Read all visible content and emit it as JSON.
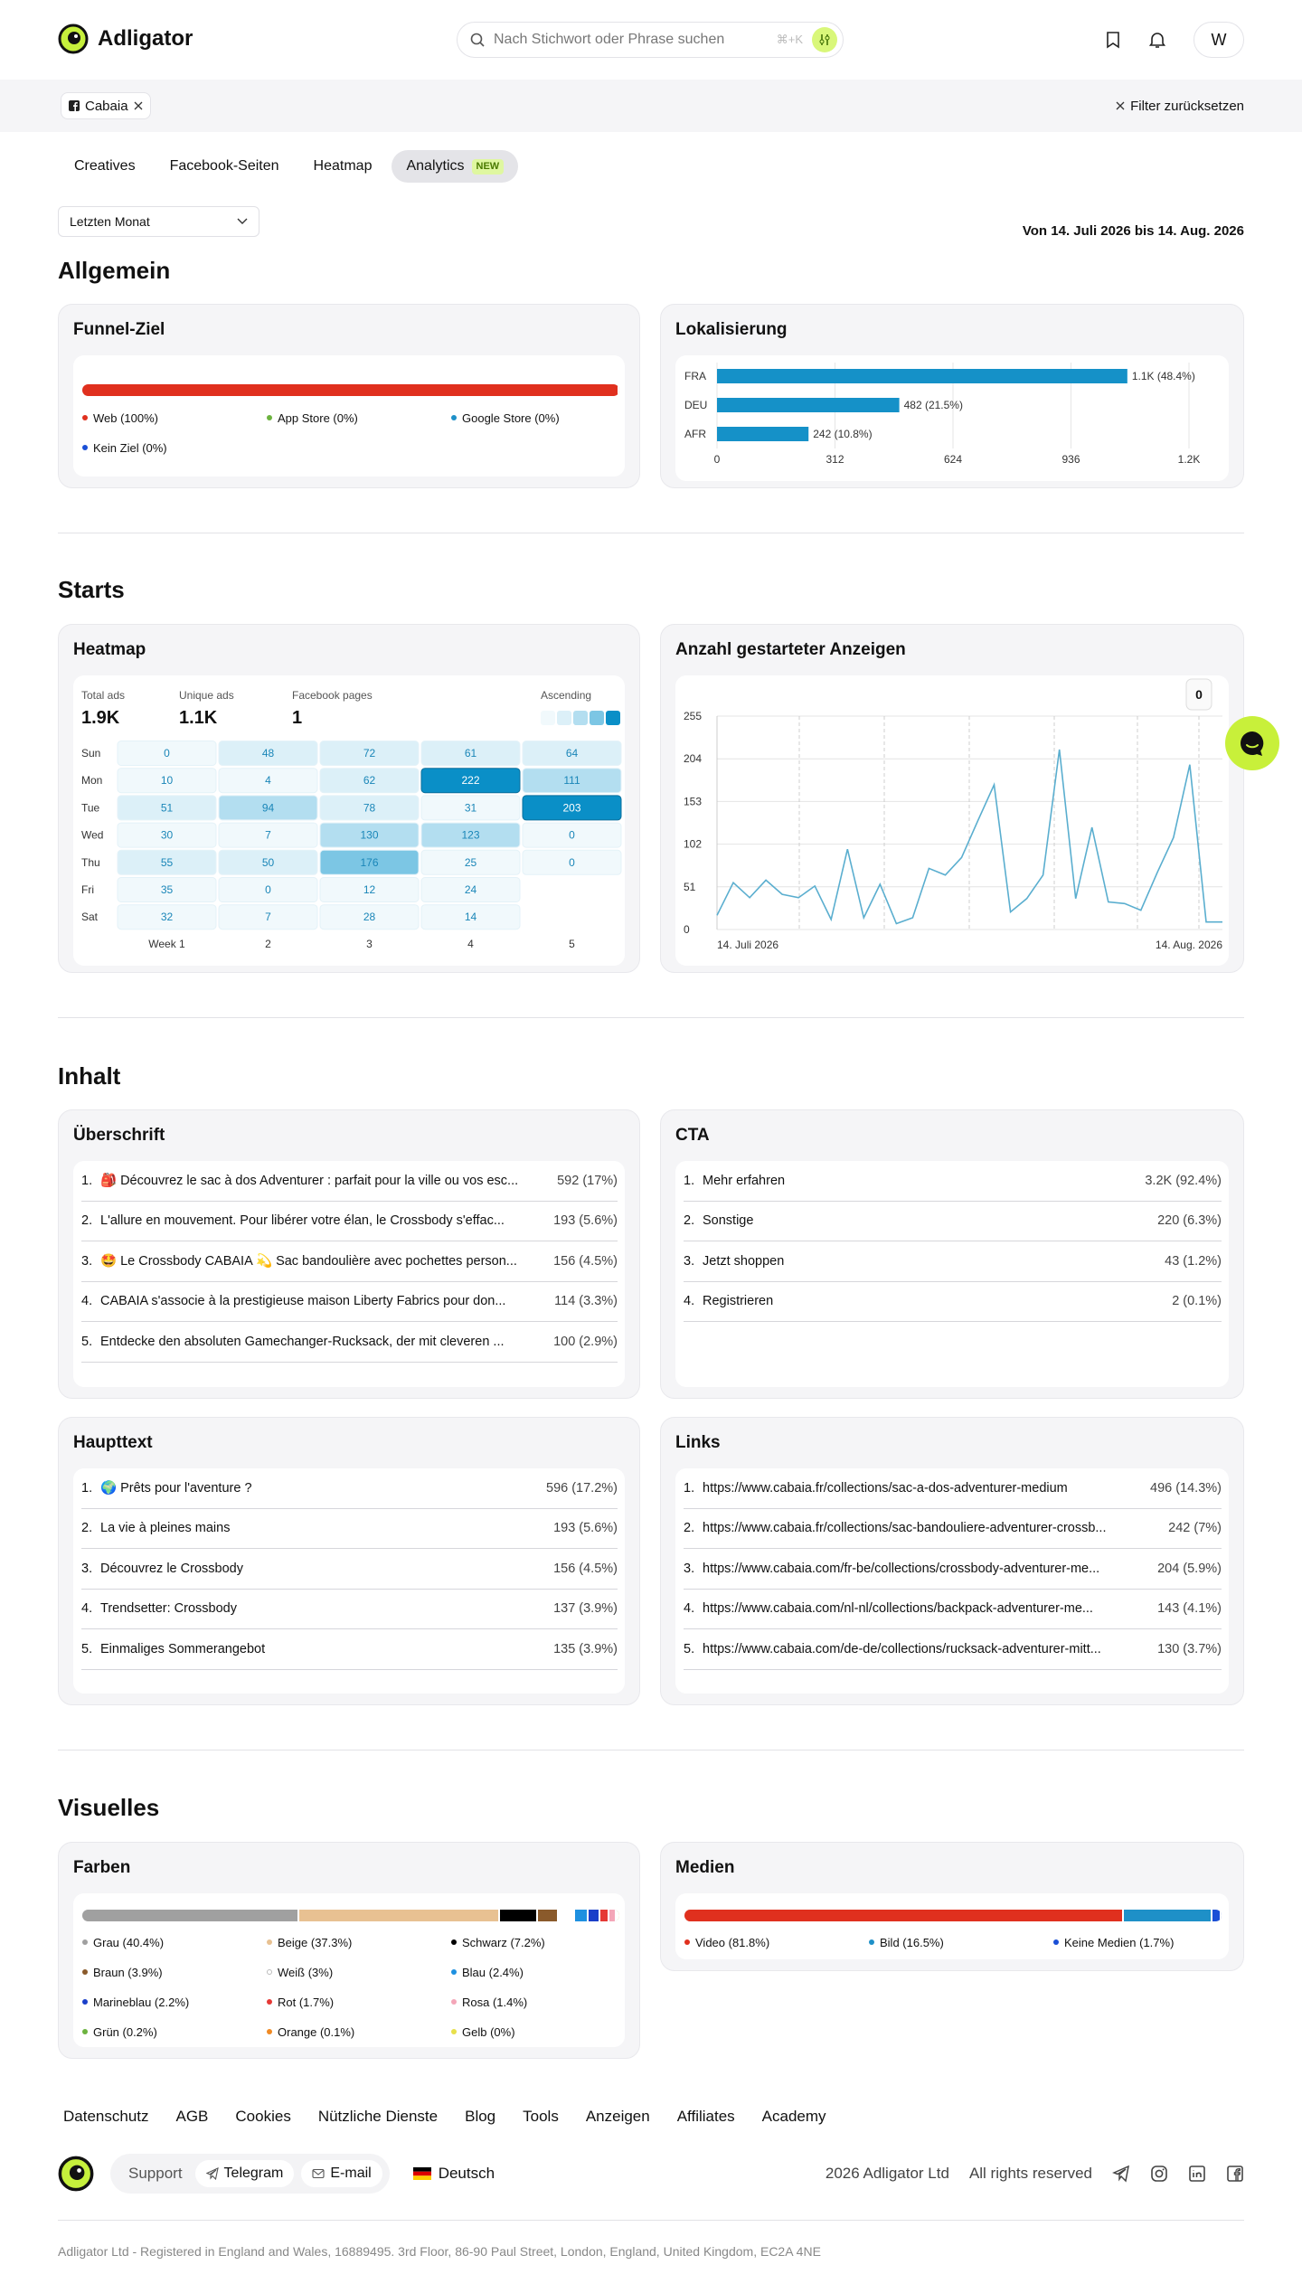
{
  "header": {
    "logo": "Adligator",
    "search_placeholder": "Nach Stichwort oder Phrase suchen",
    "search_shortcut": "⌘+K",
    "avatar": "W"
  },
  "filter_bar": {
    "chip": "Cabaia",
    "reset": "Filter zurücksetzen"
  },
  "tabs": {
    "items": [
      "Creatives",
      "Facebook-Seiten",
      "Heatmap",
      "Analytics"
    ],
    "active": 3,
    "badge": "NEW"
  },
  "period": {
    "select": "Letzten Monat",
    "range": "Von 14. Juli 2026 bis 14. Aug. 2026"
  },
  "sections": [
    "Allgemein",
    "Starts",
    "Inhalt",
    "Visuelles"
  ],
  "funnel": {
    "title": "Funnel-Ziel",
    "segments": [
      {
        "label": "Web (100%)",
        "value": 100,
        "color": "#e0301e"
      },
      {
        "label": "App Store (0%)",
        "value": 0,
        "color": "#6cb33f"
      },
      {
        "label": "Google Store (0%)",
        "value": 0,
        "color": "#1e90c8"
      },
      {
        "label": "Kein Ziel (0%)",
        "value": 0,
        "color": "#1a4fd6"
      }
    ]
  },
  "localization": {
    "title": "Lokalisierung",
    "chart_data": {
      "type": "bar",
      "orientation": "horizontal",
      "categories": [
        "FRA",
        "DEU",
        "AFR"
      ],
      "values": [
        1085,
        482,
        242
      ],
      "value_labels": [
        "1.1K (48.4%)",
        "482 (21.5%)",
        "242 (10.8%)"
      ],
      "color": "#1591c8",
      "xlim": [
        0,
        1248
      ],
      "xticks": [
        0,
        312,
        624,
        936,
        {
          "value": 1248,
          "label": "1.2K"
        }
      ],
      "grid": true
    }
  },
  "heatmap": {
    "title": "Heatmap",
    "stats": [
      {
        "label": "Total ads",
        "value": "1.9K"
      },
      {
        "label": "Unique ads",
        "value": "1.1K"
      },
      {
        "label": "Facebook pages",
        "value": "1"
      }
    ],
    "legend": "Ascending",
    "color_scale": [
      "#f1f9fc",
      "#dcf0f8",
      "#b3def0",
      "#7cc6e4",
      "#0a8fc7"
    ],
    "rows": [
      "Sun",
      "Mon",
      "Tue",
      "Wed",
      "Thu",
      "Fri",
      "Sat"
    ],
    "columns": [
      "Week 1",
      "2",
      "3",
      "4",
      "5"
    ],
    "values": [
      [
        0,
        48,
        72,
        61,
        64
      ],
      [
        10,
        4,
        62,
        222,
        111
      ],
      [
        51,
        94,
        78,
        31,
        203
      ],
      [
        30,
        7,
        130,
        123,
        0
      ],
      [
        55,
        50,
        176,
        25,
        0
      ],
      [
        35,
        0,
        12,
        24,
        null
      ],
      [
        32,
        7,
        28,
        14,
        null
      ]
    ]
  },
  "starts_chart": {
    "title": "Anzahl gestarteter Anzeigen",
    "tooltip": "0",
    "chart_data": {
      "type": "line",
      "categories": [
        "14. Juli 2026",
        null,
        null,
        null,
        null,
        null,
        null,
        null,
        null,
        null,
        null,
        null,
        null,
        null,
        null,
        null,
        null,
        null,
        null,
        null,
        null,
        null,
        null,
        null,
        null,
        null,
        null,
        null,
        null,
        null,
        null,
        "14. Aug. 2026"
      ],
      "values": [
        17,
        56,
        38,
        59,
        42,
        38,
        52,
        12,
        96,
        14,
        54,
        7,
        14,
        73,
        65,
        86,
        130,
        173,
        21,
        37,
        65,
        215,
        37,
        122,
        33,
        31,
        23,
        68,
        110,
        197,
        9,
        9
      ],
      "color": "#5aaecf",
      "ylim": [
        0,
        255
      ],
      "yticks": [
        0,
        51,
        102,
        153,
        204,
        255
      ],
      "grid": true
    }
  },
  "headlines": {
    "title": "Überschrift",
    "items": [
      {
        "rank": "1.",
        "text": "🎒 Découvrez le sac à dos Adventurer : parfait pour la ville ou vos esc...",
        "count": "592 (17%)"
      },
      {
        "rank": "2.",
        "text": "L'allure en mouvement. Pour libérer votre élan, le Crossbody s'effac...",
        "count": "193 (5.6%)"
      },
      {
        "rank": "3.",
        "text": "🤩 Le Crossbody CABAIA 💫 Sac bandoulière avec pochettes person...",
        "count": "156 (4.5%)"
      },
      {
        "rank": "4.",
        "text": "CABAIA s'associe à la prestigieuse maison Liberty Fabrics pour don...",
        "count": "114 (3.3%)"
      },
      {
        "rank": "5.",
        "text": "Entdecke den absoluten Gamechanger-Rucksack, der mit cleveren ...",
        "count": "100 (2.9%)"
      }
    ]
  },
  "cta": {
    "title": "CTA",
    "items": [
      {
        "rank": "1.",
        "text": "Mehr erfahren",
        "count": "3.2K (92.4%)"
      },
      {
        "rank": "2.",
        "text": "Sonstige",
        "count": "220 (6.3%)"
      },
      {
        "rank": "3.",
        "text": "Jetzt shoppen",
        "count": "43 (1.2%)"
      },
      {
        "rank": "4.",
        "text": "Registrieren",
        "count": "2 (0.1%)"
      }
    ]
  },
  "body_text": {
    "title": "Haupttext",
    "items": [
      {
        "rank": "1.",
        "text": "🌍 Prêts pour l'aventure ?",
        "count": "596 (17.2%)"
      },
      {
        "rank": "2.",
        "text": "La vie à pleines mains",
        "count": "193 (5.6%)"
      },
      {
        "rank": "3.",
        "text": "Découvrez le Crossbody",
        "count": "156 (4.5%)"
      },
      {
        "rank": "4.",
        "text": "Trendsetter: Crossbody",
        "count": "137 (3.9%)"
      },
      {
        "rank": "5.",
        "text": "Einmaliges Sommerangebot",
        "count": "135 (3.9%)"
      }
    ]
  },
  "links": {
    "title": "Links",
    "items": [
      {
        "rank": "1.",
        "text": "https://www.cabaia.fr/collections/sac-a-dos-adventurer-medium",
        "count": "496 (14.3%)"
      },
      {
        "rank": "2.",
        "text": "https://www.cabaia.fr/collections/sac-bandouliere-adventurer-crossb...",
        "count": "242 (7%)"
      },
      {
        "rank": "3.",
        "text": "https://www.cabaia.com/fr-be/collections/crossbody-adventurer-me...",
        "count": "204 (5.9%)"
      },
      {
        "rank": "4.",
        "text": "https://www.cabaia.com/nl-nl/collections/backpack-adventurer-me...",
        "count": "143 (4.1%)"
      },
      {
        "rank": "5.",
        "text": "https://www.cabaia.com/de-de/collections/rucksack-adventurer-mitt...",
        "count": "130 (3.7%)"
      }
    ]
  },
  "colors": {
    "title": "Farben",
    "segments": [
      {
        "label": "Grau (40.4%)",
        "value": 40.4,
        "color": "#a0a0a0"
      },
      {
        "label": "Beige (37.3%)",
        "value": 37.3,
        "color": "#e8c192"
      },
      {
        "label": "Schwarz (7.2%)",
        "value": 7.2,
        "color": "#000000"
      },
      {
        "label": "Braun (3.9%)",
        "value": 3.9,
        "color": "#8a5a2b"
      },
      {
        "label": "Weiß (3%)",
        "value": 3,
        "color": "#ffffff"
      },
      {
        "label": "Blau (2.4%)",
        "value": 2.4,
        "color": "#1e90e0"
      },
      {
        "label": "Marineblau (2.2%)",
        "value": 2.2,
        "color": "#1a3fc9"
      },
      {
        "label": "Rot (1.7%)",
        "value": 1.7,
        "color": "#e53935"
      },
      {
        "label": "Rosa (1.4%)",
        "value": 1.4,
        "color": "#f4a6b8"
      },
      {
        "label": "Grün (0.2%)",
        "value": 0.2,
        "color": "#6cb33f"
      },
      {
        "label": "Orange (0.1%)",
        "value": 0.1,
        "color": "#f08a24"
      },
      {
        "label": "Gelb (0%)",
        "value": 0,
        "color": "#e8e04a"
      }
    ]
  },
  "media": {
    "title": "Medien",
    "segments": [
      {
        "label": "Video (81.8%)",
        "value": 81.8,
        "color": "#e0301e"
      },
      {
        "label": "Bild (16.5%)",
        "value": 16.5,
        "color": "#1e90c8"
      },
      {
        "label": "Keine Medien (1.7%)",
        "value": 1.7,
        "color": "#1a4fd6"
      }
    ]
  },
  "footer": {
    "links": [
      "Datenschutz",
      "AGB",
      "Cookies",
      "Nützliche Dienste",
      "Blog",
      "Tools",
      "Anzeigen",
      "Affiliates",
      "Academy"
    ],
    "support": "Support",
    "telegram": "Telegram",
    "email": "E-mail",
    "language": "Deutsch",
    "copyright": "2026 Adligator Ltd",
    "rights": "All rights reserved",
    "legal": "Adligator Ltd - Registered in England and Wales, 16889495. 3rd Floor, 86-90 Paul Street, London, England, United Kingdom, EC2A 4NE"
  }
}
